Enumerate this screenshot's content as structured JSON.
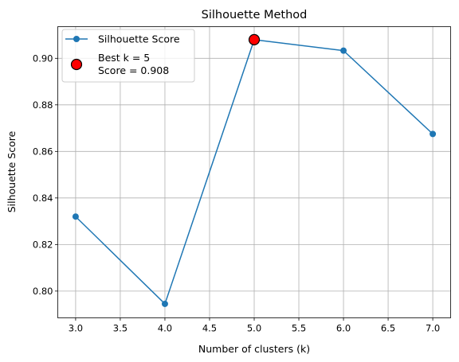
{
  "chart_data": {
    "type": "line",
    "title": "Silhouette Method",
    "xlabel": "Number of clusters (k)",
    "ylabel": "Silhouette Score",
    "xlim": [
      2.8,
      7.2
    ],
    "ylim": [
      0.7885,
      0.9136
    ],
    "grid": true,
    "legend_position": "upper left",
    "x_ticks": [
      3.0,
      3.5,
      4.0,
      4.5,
      5.0,
      5.5,
      6.0,
      6.5,
      7.0
    ],
    "x_tick_labels": [
      "3.0",
      "3.5",
      "4.0",
      "4.5",
      "5.0",
      "5.5",
      "6.0",
      "6.5",
      "7.0"
    ],
    "y_ticks": [
      0.8,
      0.82,
      0.84,
      0.86,
      0.88,
      0.9
    ],
    "y_tick_labels": [
      "0.80",
      "0.82",
      "0.84",
      "0.86",
      "0.88",
      "0.90"
    ],
    "series": [
      {
        "name": "Silhouette Score",
        "color": "#1f77b4",
        "x": [
          3,
          4,
          5,
          6,
          7
        ],
        "y": [
          0.832,
          0.7945,
          0.908,
          0.9033,
          0.8675
        ]
      }
    ],
    "highlight": {
      "label_line1": "Best k = 5",
      "label_line2": "Score = 0.908",
      "x": 5,
      "y": 0.908,
      "fill": "#ff0000",
      "edge": "#000000"
    }
  }
}
